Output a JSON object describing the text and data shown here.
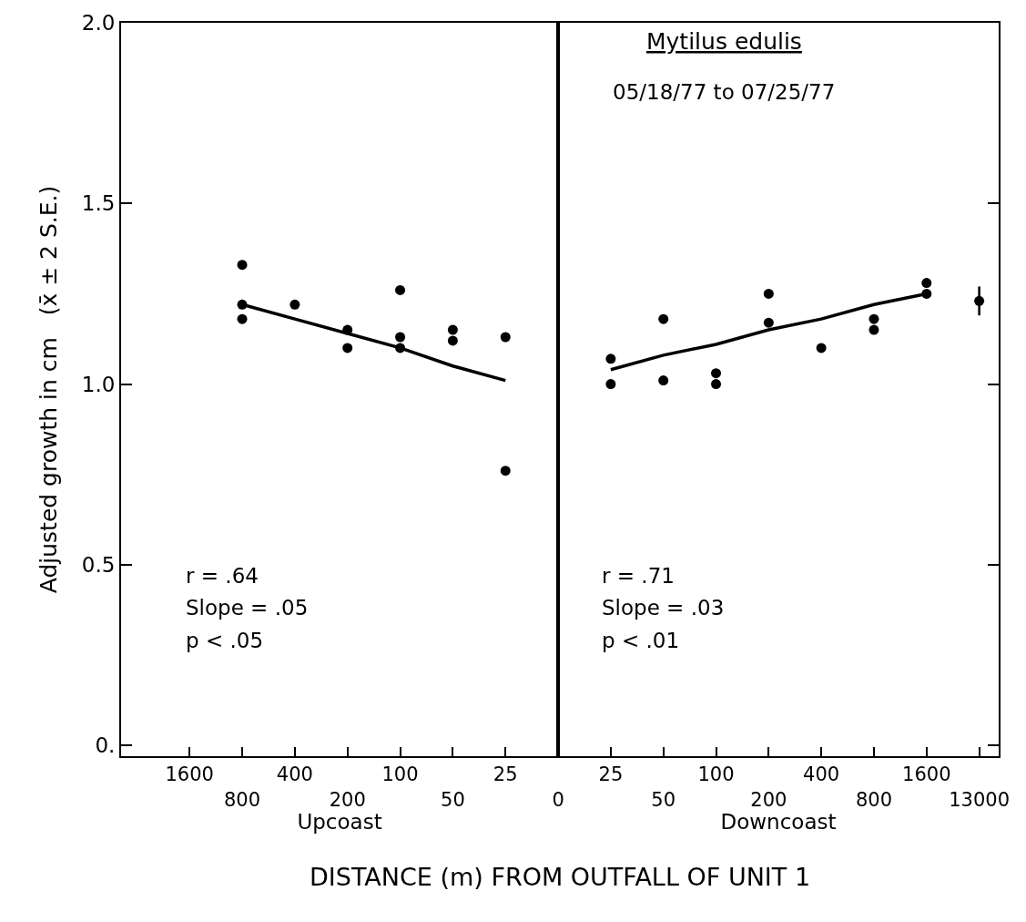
{
  "chart_data": [
    {
      "type": "scatter",
      "xlabel": "Upcoast",
      "ylabel": "Adjusted growth in cm   (x̄ ± 2 S.E.)",
      "categories": [
        "1600",
        "800",
        "400",
        "200",
        "100",
        "50",
        "25",
        "0"
      ],
      "ylim": [
        -0.03,
        2.0
      ],
      "yticks": [
        {
          "value": 0,
          "label": "0."
        },
        {
          "value": 0.5,
          "label": "0.5"
        },
        {
          "value": 1.0,
          "label": "1.0"
        },
        {
          "value": 1.5,
          "label": "1.5"
        },
        {
          "value": 2.0,
          "label": "2.0"
        }
      ],
      "marker": "circle",
      "series": [
        {
          "color": "#000000",
          "values": [
            null,
            1.33,
            1.22,
            1.15,
            1.26,
            1.15,
            1.13,
            null
          ]
        },
        {
          "color": "#000000",
          "values": [
            null,
            1.22,
            null,
            1.1,
            1.13,
            1.12,
            0.76,
            null
          ]
        },
        {
          "color": "#000000",
          "values": [
            null,
            1.18,
            null,
            null,
            1.1,
            null,
            null,
            null
          ]
        },
        {
          "type": "line",
          "color": "#000000",
          "marker": "none",
          "values": [
            null,
            1.22,
            1.18,
            1.14,
            1.1,
            1.05,
            1.01,
            null
          ]
        }
      ],
      "annotations": [
        "r = .64",
        "Slope = .05",
        "p < .05",
        "DISTANCE (m) FROM OUTFALL OF UNIT 1"
      ]
    },
    {
      "type": "scatter",
      "xlabel": "Downcoast",
      "categories": [
        "25",
        "50",
        "100",
        "200",
        "400",
        "800",
        "1600",
        "13000"
      ],
      "ylim": [
        -0.03,
        2.0
      ],
      "yticks": [
        {
          "value": 0,
          "label": null
        },
        {
          "value": 0.5,
          "label": null
        },
        {
          "value": 1.0,
          "label": null
        },
        {
          "value": 1.5,
          "label": null
        },
        {
          "value": 2.0,
          "label": null
        }
      ],
      "tick_labels": "x",
      "marker": "circle",
      "series": [
        {
          "color": "#000000",
          "values": [
            1.07,
            1.18,
            1.03,
            1.25,
            1.1,
            1.18,
            1.28,
            1.23
          ],
          "errors": [
            null,
            null,
            null,
            null,
            null,
            null,
            null,
            0.04
          ]
        },
        {
          "color": "#000000",
          "values": [
            1.0,
            1.01,
            1.0,
            1.17,
            null,
            1.15,
            1.25,
            null
          ]
        },
        {
          "type": "line",
          "color": "#000000",
          "marker": "none",
          "values": [
            1.04,
            1.08,
            1.11,
            1.15,
            1.18,
            1.22,
            1.25,
            null
          ]
        }
      ],
      "annotations": [
        "Mytilus edulis",
        "05/18/77 to 07/25/77",
        "r = .71",
        "Slope = .03",
        "p < .01"
      ]
    }
  ]
}
